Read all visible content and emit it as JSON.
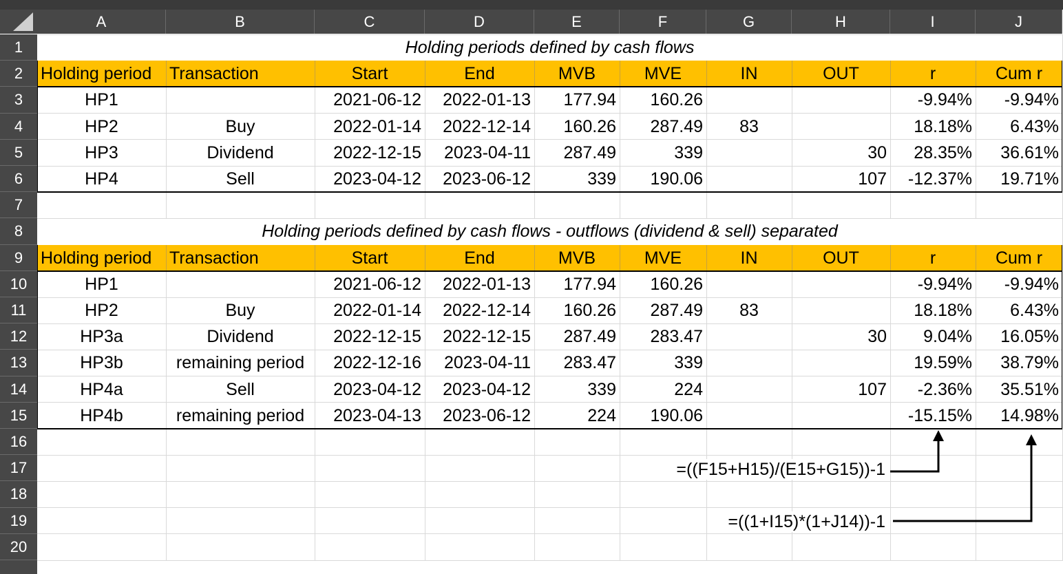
{
  "column_letters": [
    "A",
    "B",
    "C",
    "D",
    "E",
    "F",
    "G",
    "H",
    "I",
    "J"
  ],
  "row_numbers": [
    "1",
    "2",
    "3",
    "4",
    "5",
    "6",
    "7",
    "8",
    "9",
    "10",
    "11",
    "12",
    "13",
    "14",
    "15",
    "16",
    "17",
    "18",
    "19",
    "20"
  ],
  "headers": [
    "Holding period",
    "Transaction",
    "Start",
    "End",
    "MVB",
    "MVE",
    "IN",
    "OUT",
    "r",
    "Cum r"
  ],
  "table1": {
    "title": "Holding periods defined by cash flows",
    "rows": [
      [
        "HP1",
        "",
        "2021-06-12",
        "2022-01-13",
        "177.94",
        "160.26",
        "",
        "",
        "-9.94%",
        "-9.94%"
      ],
      [
        "HP2",
        "Buy",
        "2022-01-14",
        "2022-12-14",
        "160.26",
        "287.49",
        "83",
        "",
        "18.18%",
        "6.43%"
      ],
      [
        "HP3",
        "Dividend",
        "2022-12-15",
        "2023-04-11",
        "287.49",
        "339",
        "",
        "30",
        "28.35%",
        "36.61%"
      ],
      [
        "HP4",
        "Sell",
        "2023-04-12",
        "2023-06-12",
        "339",
        "190.06",
        "",
        "107",
        "-12.37%",
        "19.71%"
      ]
    ]
  },
  "table2": {
    "title": "Holding periods defined by cash flows - outflows (dividend & sell) separated",
    "rows": [
      [
        "HP1",
        "",
        "2021-06-12",
        "2022-01-13",
        "177.94",
        "160.26",
        "",
        "",
        "-9.94%",
        "-9.94%"
      ],
      [
        "HP2",
        "Buy",
        "2022-01-14",
        "2022-12-14",
        "160.26",
        "287.49",
        "83",
        "",
        "18.18%",
        "6.43%"
      ],
      [
        "HP3a",
        "Dividend",
        "2022-12-15",
        "2022-12-15",
        "287.49",
        "283.47",
        "",
        "30",
        "9.04%",
        "16.05%"
      ],
      [
        "HP3b",
        "remaining period",
        "2022-12-16",
        "2023-04-11",
        "283.47",
        "339",
        "",
        "",
        "19.59%",
        "38.79%"
      ],
      [
        "HP4a",
        "Sell",
        "2023-04-12",
        "2023-04-12",
        "339",
        "224",
        "",
        "107",
        "-2.36%",
        "35.51%"
      ],
      [
        "HP4b",
        "remaining period",
        "2023-04-13",
        "2023-06-12",
        "224",
        "190.06",
        "",
        "",
        "-15.15%",
        "14.98%"
      ]
    ]
  },
  "annotations": {
    "formula_r": "=((F15+H15)/(E15+G15))-1",
    "formula_cumr": "=((1+I15)*(1+J14))-1"
  },
  "colors": {
    "header_fill": "#ffc000",
    "headings_bg": "#474747",
    "gridline": "#d9d9d9"
  }
}
